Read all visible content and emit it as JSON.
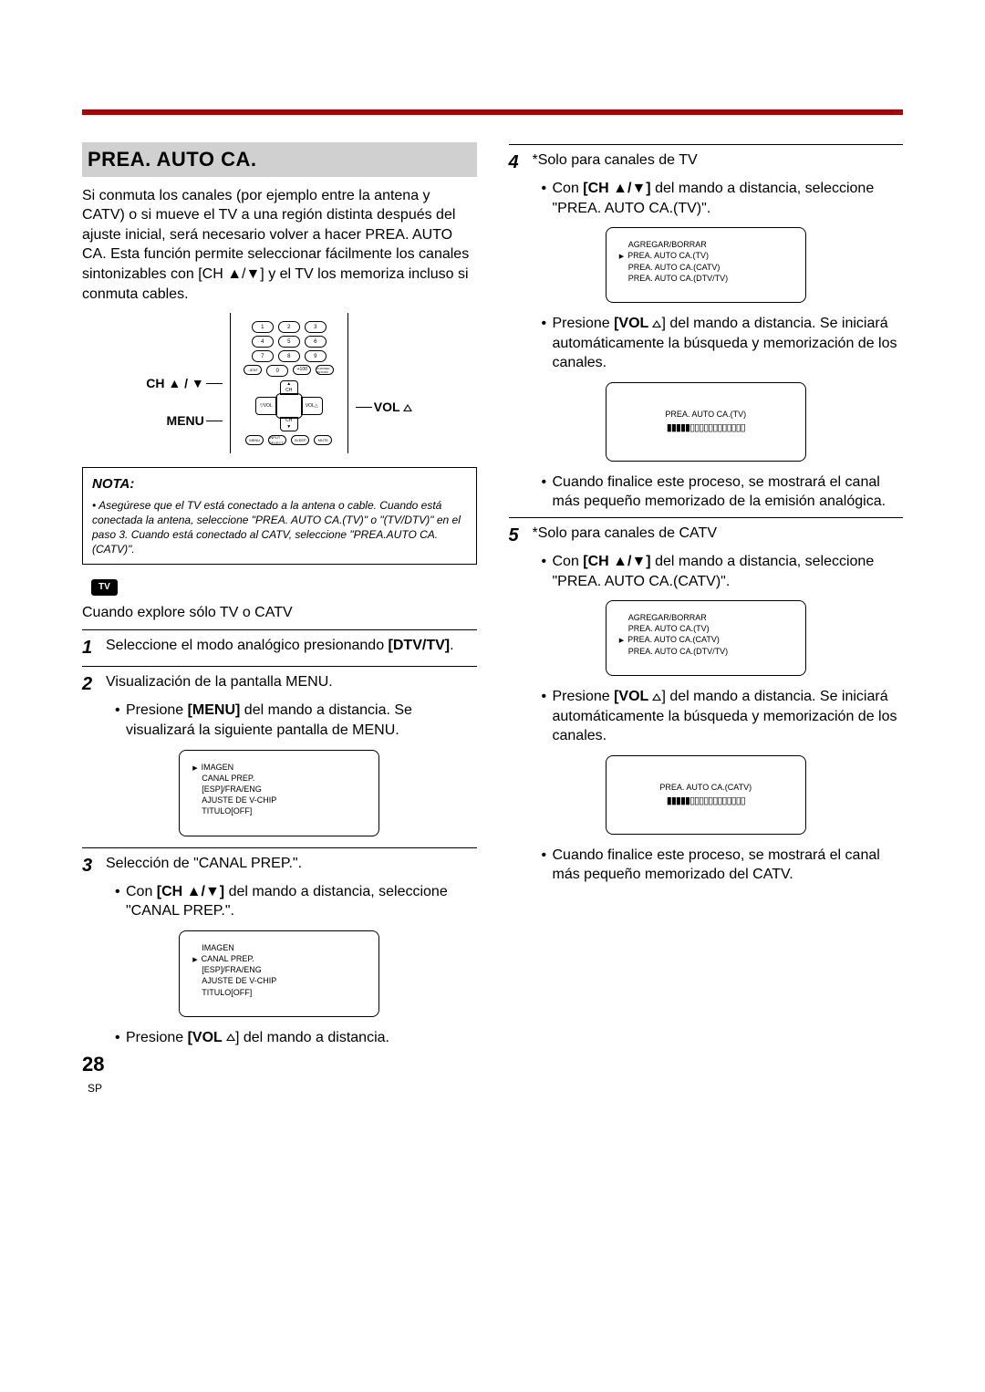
{
  "title": "PREA. AUTO CA.",
  "intro": "Si conmuta los canales (por ejemplo entre la antena y CATV) o si mueve el TV a una región distinta después del ajuste inicial, será necesario volver a hacer PREA. AUTO CA. Esta función permite seleccionar fácilmente los canales sintonizables con [CH ▲/▼] y el TV los memoriza incluso si conmuta cables.",
  "remote": {
    "ch_label": "CH ▲ / ▼",
    "menu_label": "MENU",
    "vol_label": "VOL"
  },
  "nota_title": "NOTA:",
  "nota_body": "Asegúrese que el TV está conectado a la antena o cable. Cuando está conectada la antena, seleccione \"PREA. AUTO CA.(TV)\" o \"(TV/DTV)\" en el paso 3. Cuando está conectado al CATV, seleccione \"PREA.AUTO CA.(CATV)\".",
  "tv_tag": "TV",
  "tv_intro": "Cuando explore sólo TV o CATV",
  "step1": {
    "text": "Seleccione el modo analógico presionando ",
    "bold": "[DTV/TV]",
    "suffix": "."
  },
  "step2": {
    "text": "Visualización de la pantalla MENU.",
    "b1_pre": "Presione ",
    "b1_bold": "[MENU]",
    "b1_post": " del mando a distancia. Se visualizará la siguiente pantalla de MENU."
  },
  "osd1": {
    "lines": [
      "IMAGEN",
      "CANAL PREP.",
      "[ESP]/FRA/ENG",
      "AJUSTE DE V-CHIP",
      "TITULO[OFF]"
    ],
    "cursor_idx": 0
  },
  "step3": {
    "text": "Selección de \"CANAL PREP.\".",
    "b1_pre": "Con ",
    "b1_bold": "[CH ▲/▼]",
    "b1_post": " del mando a distancia, seleccione \"CANAL PREP.\"."
  },
  "osd2": {
    "lines": [
      "IMAGEN",
      "CANAL PREP.",
      "[ESP]/FRA/ENG",
      "AJUSTE DE V-CHIP",
      "TITULO[OFF]"
    ],
    "cursor_idx": 1
  },
  "step3_tail_pre": "Presione ",
  "step3_tail_bold": "[VOL ",
  "step3_tail_post": "] del mando a distancia.",
  "step4": {
    "text": "*Solo para canales de TV",
    "b1_pre": "Con ",
    "b1_bold": "[CH ▲/▼]",
    "b1_post": " del mando a distancia, seleccione \"PREA. AUTO CA.(TV)\"."
  },
  "osd3": {
    "lines": [
      "AGREGAR/BORRAR",
      "PREA. AUTO CA.(TV)",
      "PREA. AUTO CA.(CATV)",
      "PREA. AUTO CA.(DTV/TV)"
    ],
    "cursor_idx": 1
  },
  "step4_b2_pre": "Presione ",
  "step4_b2_bold": "[VOL ",
  "step4_b2_post": "] del mando a distancia. Se iniciará automáticamente la búsqueda y memorización de los canales.",
  "osd4": {
    "title": "PREA. AUTO CA.(TV)",
    "progress": "▮▮▮▮▮▯▯▯▯▯▯▯▯▯▯▯▯"
  },
  "step4_b3": "Cuando finalice este proceso, se mostrará el canal más pequeño memorizado de la emisión analógica.",
  "step5": {
    "text": "*Solo para canales de CATV",
    "b1_pre": "Con ",
    "b1_bold": "[CH ▲/▼]",
    "b1_post": " del mando a distancia, seleccione \"PREA. AUTO CA.(CATV)\"."
  },
  "osd5": {
    "lines": [
      "AGREGAR/BORRAR",
      "PREA. AUTO CA.(TV)",
      "PREA. AUTO CA.(CATV)",
      "PREA. AUTO CA.(DTV/TV)"
    ],
    "cursor_idx": 2
  },
  "step5_b2_pre": "Presione ",
  "step5_b2_bold": "[VOL ",
  "step5_b2_post": "] del mando a distancia. Se iniciará automáticamente la búsqueda y memorización de los canales.",
  "osd6": {
    "title": "PREA. AUTO CA.(CATV)",
    "progress": "▮▮▮▮▮▯▯▯▯▯▯▯▯▯▯▯▯"
  },
  "step5_b3": "Cuando finalice este proceso, se mostrará el canal más pequeño memorizado del CATV.",
  "page_num": "28",
  "page_sub": "SP"
}
